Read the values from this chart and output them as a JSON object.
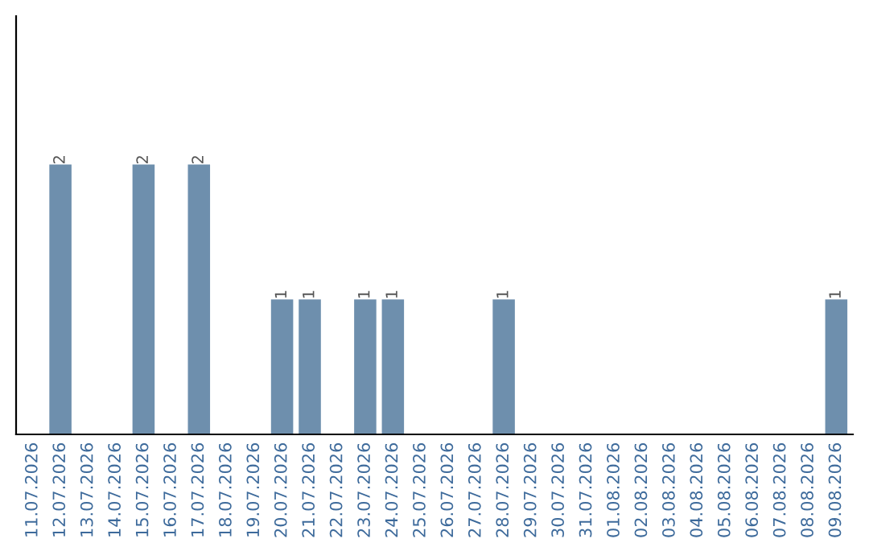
{
  "chart_data": {
    "type": "bar",
    "categories": [
      "11.07.2026",
      "12.07.2026",
      "13.07.2026",
      "14.07.2026",
      "15.07.2026",
      "16.07.2026",
      "17.07.2026",
      "18.07.2026",
      "19.07.2026",
      "20.07.2026",
      "21.07.2026",
      "22.07.2026",
      "23.07.2026",
      "24.07.2026",
      "25.07.2026",
      "26.07.2026",
      "27.07.2026",
      "28.07.2026",
      "29.07.2026",
      "30.07.2026",
      "31.07.2026",
      "01.08.2026",
      "02.08.2026",
      "03.08.2026",
      "04.08.2026",
      "05.08.2026",
      "06.08.2026",
      "07.08.2026",
      "08.08.2026",
      "09.08.2026"
    ],
    "values": [
      0,
      2,
      0,
      0,
      2,
      0,
      2,
      0,
      0,
      1,
      1,
      0,
      1,
      1,
      0,
      0,
      0,
      1,
      0,
      0,
      0,
      0,
      0,
      0,
      0,
      0,
      0,
      0,
      0,
      1
    ],
    "value_labels": [
      null,
      "2",
      null,
      null,
      "2",
      null,
      "2",
      null,
      null,
      "1",
      "1",
      null,
      "1",
      "1",
      null,
      null,
      null,
      "1",
      null,
      null,
      null,
      null,
      null,
      null,
      null,
      null,
      null,
      null,
      null,
      "1"
    ],
    "color": "#6e8fad",
    "ylim": [
      0,
      3.1
    ],
    "tick_labels": "x",
    "grid": false,
    "legend": false
  }
}
